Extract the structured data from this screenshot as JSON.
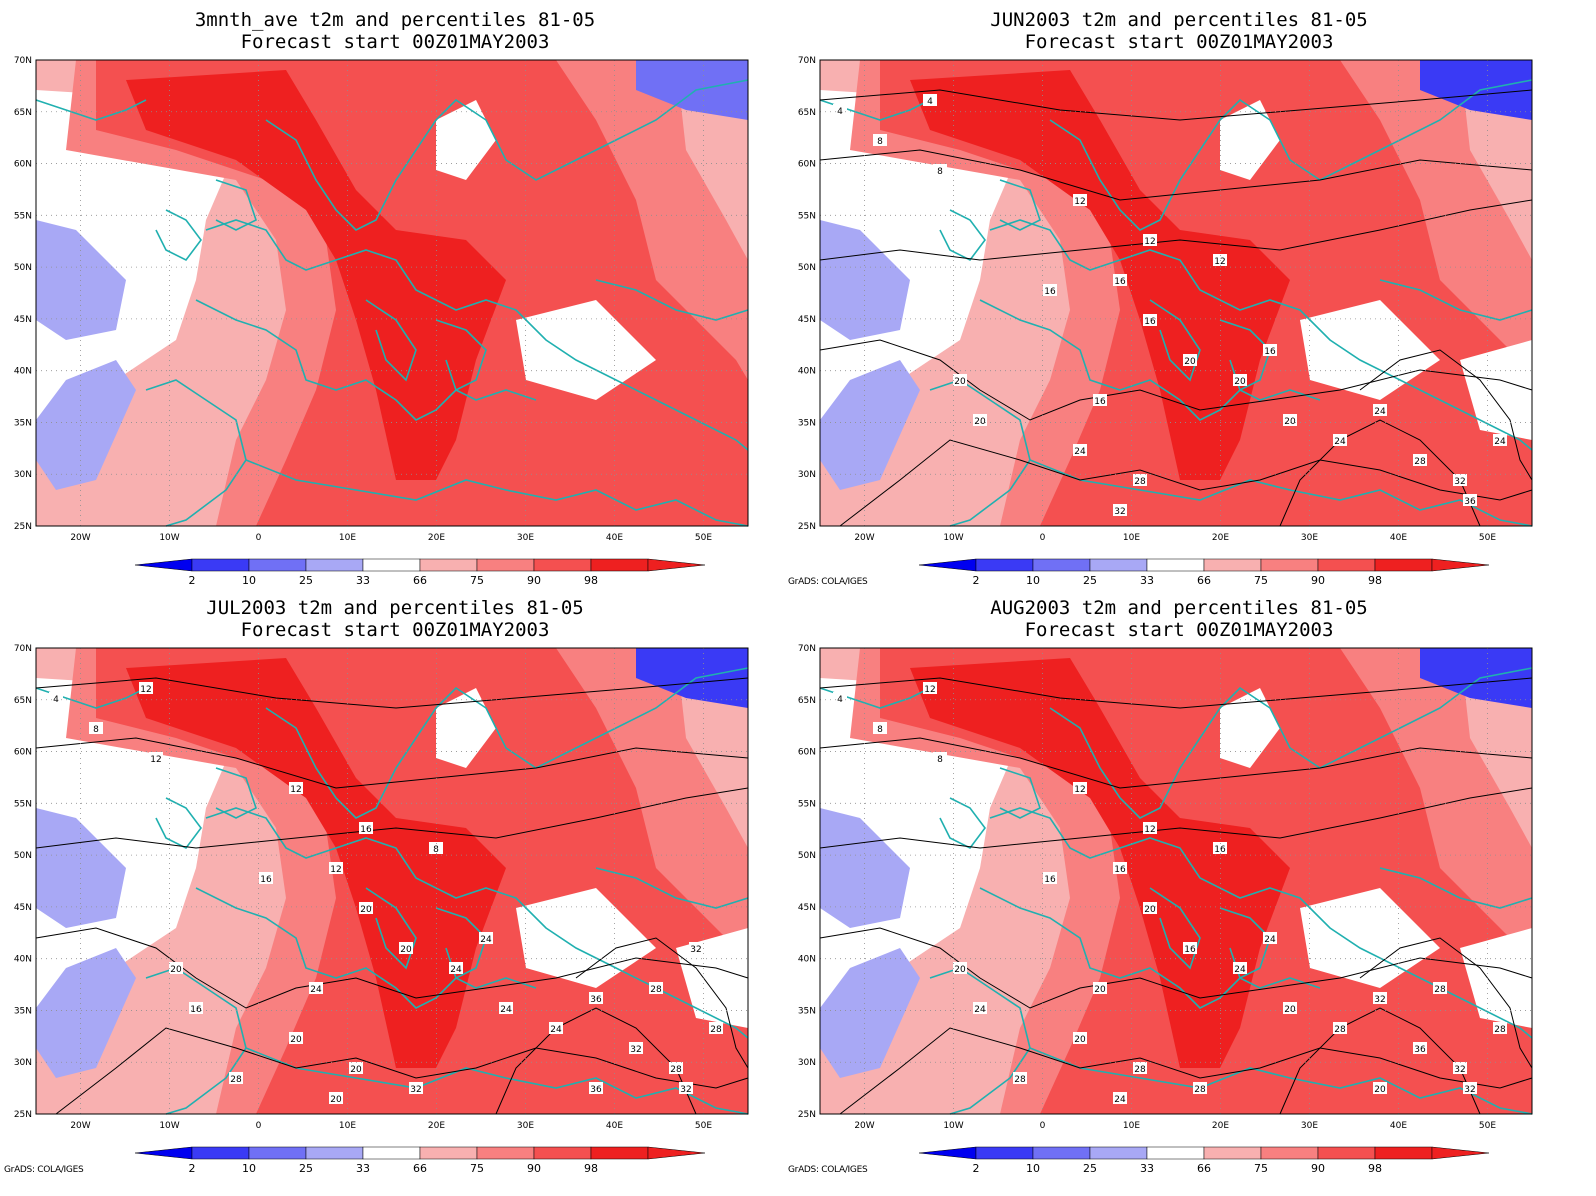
{
  "panels": [
    {
      "title_line1": "3mnth_ave t2m and percentiles 81-05",
      "title_line2": "Forecast start 00Z01MAY2003",
      "credit": "",
      "contour_labels": []
    },
    {
      "title_line1": "JUN2003 t2m and percentiles 81-05",
      "title_line2": "Forecast start 00Z01MAY2003",
      "credit": "GrADS: COLA/IGES",
      "contour_labels": [
        "4",
        "8",
        "4",
        "8",
        "12",
        "12",
        "12",
        "16",
        "16",
        "16",
        "20",
        "16",
        "20",
        "20",
        "20",
        "16",
        "20",
        "24",
        "28",
        "32",
        "24",
        "24",
        "28",
        "32",
        "24",
        "36"
      ]
    },
    {
      "title_line1": "JUL2003 t2m and percentiles 81-05",
      "title_line2": "Forecast start 00Z01MAY2003",
      "credit": "GrADS: COLA/IGES",
      "contour_labels": [
        "4",
        "8",
        "12",
        "12",
        "12",
        "16",
        "8",
        "12",
        "16",
        "20",
        "20",
        "24",
        "16",
        "20",
        "24",
        "24",
        "24",
        "20",
        "20",
        "20",
        "24",
        "36",
        "32",
        "28",
        "28",
        "32",
        "28",
        "32",
        "36",
        "28",
        "32"
      ]
    },
    {
      "title_line1": "AUG2003 t2m and percentiles 81-05",
      "title_line2": "Forecast start 00Z01MAY2003",
      "credit": "GrADS: COLA/IGES",
      "contour_labels": [
        "4",
        "8",
        "12",
        "8",
        "12",
        "12",
        "16",
        "16",
        "16",
        "20",
        "16",
        "20",
        "24",
        "20",
        "24",
        "24",
        "20",
        "20",
        "28",
        "24",
        "28",
        "32",
        "36",
        "32",
        "28",
        "32",
        "28",
        "28",
        "20",
        "28"
      ]
    }
  ],
  "axes": {
    "lat_labels": [
      "70N",
      "65N",
      "60N",
      "55N",
      "50N",
      "45N",
      "40N",
      "35N",
      "30N",
      "25N"
    ],
    "lon_labels": [
      "20W",
      "10W",
      "0",
      "10E",
      "20E",
      "30E",
      "40E",
      "50E"
    ],
    "lat_range": [
      25,
      70
    ],
    "lon_range": [
      -25,
      55
    ]
  },
  "colorbar": {
    "labels": [
      "2",
      "10",
      "25",
      "33",
      "66",
      "75",
      "90",
      "98"
    ],
    "colors": [
      "#0000f0",
      "#3a3af5",
      "#7070f5",
      "#a8a8f5",
      "#ffffff",
      "#f8b0b0",
      "#f88080",
      "#f45050",
      "#ee2020"
    ]
  },
  "legend_colors": {
    "contour": "#000000",
    "coastline": "#20b0b0"
  }
}
